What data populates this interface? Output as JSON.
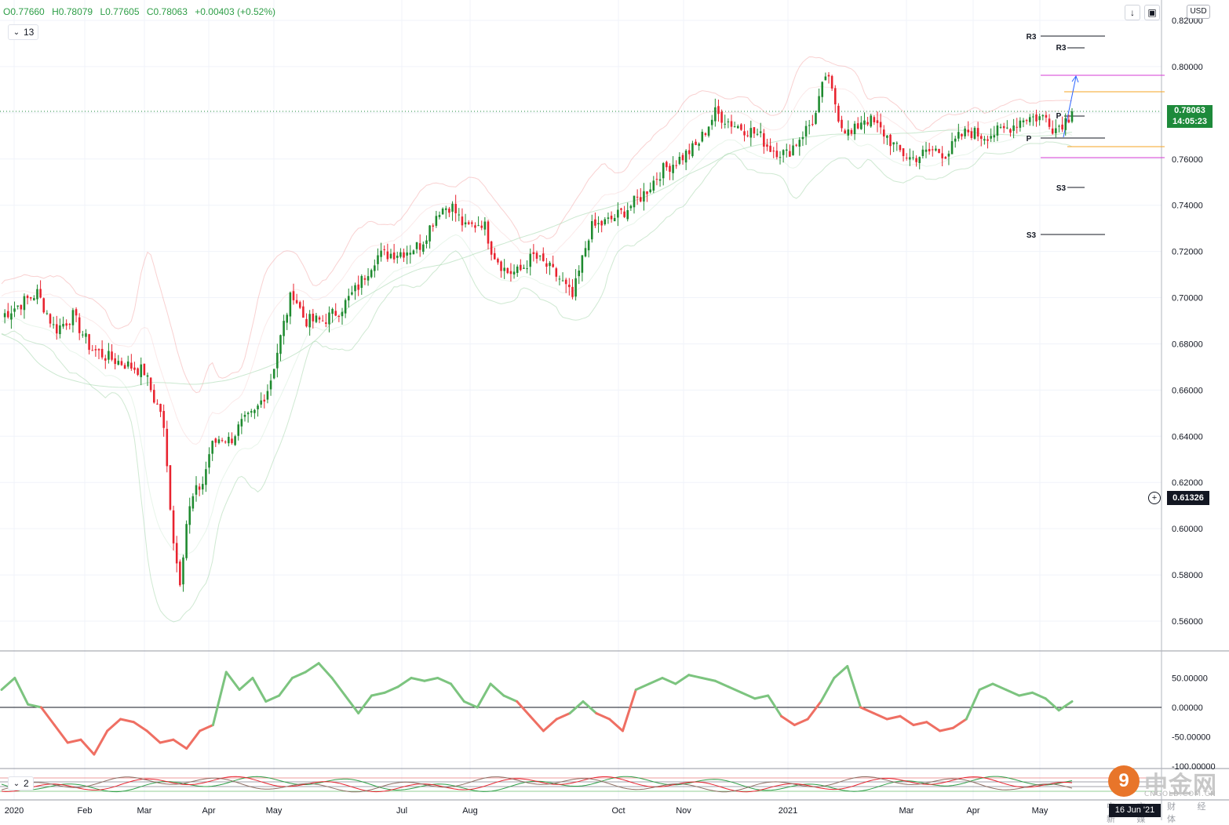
{
  "ohlc": {
    "open": "O0.77660",
    "high": "H0.78079",
    "low": "L0.77605",
    "close": "C0.78063",
    "change": "+0.00403 (+0.52%)"
  },
  "indicators": {
    "momentum_length": "13",
    "stoch_length": "2"
  },
  "toolbar": {
    "currency": "USD",
    "scroll_down_icon": "arrow-down-icon",
    "fullscreen_icon": "fullscreen-icon"
  },
  "price_badge": {
    "price": "0.78063",
    "countdown": "14:05:23"
  },
  "crosshair_badge": "0.61326",
  "date_badge": "16 Jun '21",
  "watermark": {
    "logo_glyph": "9",
    "name": "中金网",
    "domain": "CNGOLD.COM.CN",
    "tagline": "中 文 财 经 新 媒 体"
  },
  "colors": {
    "up": "#1e8a2f",
    "down": "#e8232f",
    "momentum_up": "#7cc47f",
    "momentum_down": "#ef6f63",
    "pivot_orange": "#f5a623",
    "pivot_magenta": "#d63bd6",
    "projection_arrow": "#2962ff"
  },
  "chart_data": [
    {
      "type": "candlestick",
      "instrument_currency": "USD",
      "ylim": [
        0.55,
        0.82
      ],
      "yticks": [
        "0.82000",
        "0.80000",
        "0.78000",
        "0.76000",
        "0.74000",
        "0.72000",
        "0.70000",
        "0.68000",
        "0.66000",
        "0.64000",
        "0.62000",
        "0.60000",
        "0.58000",
        "0.56000"
      ],
      "xticks": [
        "2020",
        "Feb",
        "Mar",
        "Apr",
        "May",
        "Jul",
        "Aug",
        "Oct",
        "Nov",
        "2021",
        "Mar",
        "Apr",
        "May"
      ],
      "last_price": 0.78063,
      "path": [
        [
          0,
          0.692
        ],
        [
          2,
          0.702
        ],
        [
          3,
          0.686
        ],
        [
          4,
          0.692
        ],
        [
          5,
          0.678
        ],
        [
          6,
          0.674
        ],
        [
          7,
          0.671
        ],
        [
          8,
          0.668
        ],
        [
          8.6,
          0.655
        ],
        [
          9,
          0.65
        ],
        [
          9.4,
          0.615
        ],
        [
          9.7,
          0.59
        ],
        [
          10.0,
          0.578
        ],
        [
          10.4,
          0.605
        ],
        [
          10.8,
          0.615
        ],
        [
          11.3,
          0.62
        ],
        [
          11.7,
          0.635
        ],
        [
          12.3,
          0.64
        ],
        [
          12.8,
          0.638
        ],
        [
          13.4,
          0.645
        ],
        [
          14.2,
          0.65
        ],
        [
          15,
          0.662
        ],
        [
          15.8,
          0.688
        ],
        [
          16.3,
          0.703
        ],
        [
          17,
          0.69
        ],
        [
          18,
          0.69
        ],
        [
          19,
          0.695
        ],
        [
          20,
          0.705
        ],
        [
          21,
          0.718
        ],
        [
          22.6,
          0.72
        ],
        [
          23.5,
          0.723
        ],
        [
          24.5,
          0.738
        ],
        [
          25.2,
          0.74
        ],
        [
          26,
          0.73
        ],
        [
          27,
          0.733
        ],
        [
          27.5,
          0.72
        ],
        [
          28.3,
          0.711
        ],
        [
          29,
          0.711
        ],
        [
          29.8,
          0.718
        ],
        [
          30.5,
          0.714
        ],
        [
          31.3,
          0.708
        ],
        [
          32,
          0.7
        ],
        [
          33,
          0.73
        ],
        [
          34,
          0.733
        ],
        [
          35,
          0.738
        ],
        [
          36,
          0.745
        ],
        [
          37,
          0.755
        ],
        [
          38,
          0.76
        ],
        [
          39,
          0.766
        ],
        [
          40,
          0.78
        ],
        [
          41,
          0.775
        ],
        [
          42,
          0.772
        ],
        [
          42.5,
          0.77
        ],
        [
          43,
          0.765
        ],
        [
          44,
          0.762
        ],
        [
          45,
          0.772
        ],
        [
          45.6,
          0.778
        ],
        [
          46.2,
          0.797
        ],
        [
          46.7,
          0.785
        ],
        [
          47,
          0.776
        ],
        [
          47.6,
          0.77
        ],
        [
          48.3,
          0.778
        ],
        [
          48.8,
          0.776
        ],
        [
          49.6,
          0.77
        ],
        [
          50.2,
          0.764
        ],
        [
          51,
          0.76
        ],
        [
          51.6,
          0.762
        ],
        [
          52.3,
          0.764
        ],
        [
          53,
          0.762
        ],
        [
          53.6,
          0.769
        ],
        [
          54.2,
          0.772
        ],
        [
          55,
          0.77
        ],
        [
          56,
          0.772
        ],
        [
          56.8,
          0.775
        ],
        [
          57.3,
          0.778
        ],
        [
          58,
          0.778
        ],
        [
          58.6,
          0.778
        ],
        [
          59,
          0.7728
        ],
        [
          59.8,
          0.778
        ],
        [
          60,
          0.7806
        ]
      ]
    },
    {
      "type": "line",
      "name": "momentum",
      "length": 13,
      "yticks": [
        "50.00000",
        "0.00000",
        "-50.00000",
        "-100.00000"
      ],
      "ylim": [
        -100,
        75
      ],
      "values": [
        30,
        50,
        5,
        0,
        -30,
        -60,
        -55,
        -80,
        -40,
        -20,
        -25,
        -40,
        -60,
        -55,
        -70,
        -40,
        -30,
        60,
        30,
        50,
        10,
        20,
        50,
        60,
        75,
        50,
        20,
        -10,
        20,
        25,
        35,
        50,
        45,
        50,
        40,
        10,
        0,
        40,
        20,
        10,
        -15,
        -40,
        -20,
        -10,
        10,
        -10,
        -20,
        -40,
        30,
        40,
        50,
        40,
        55,
        50,
        45,
        35,
        25,
        15,
        20,
        -15,
        -30,
        -20,
        10,
        50,
        70,
        0,
        -10,
        -20,
        -15,
        -30,
        -25,
        -40,
        -35,
        -20,
        30,
        40,
        30,
        20,
        25,
        15,
        -5,
        10
      ]
    },
    {
      "type": "line",
      "name": "stochastic",
      "length": 2,
      "ylim": [
        0,
        100
      ],
      "series_count": 3
    }
  ]
}
